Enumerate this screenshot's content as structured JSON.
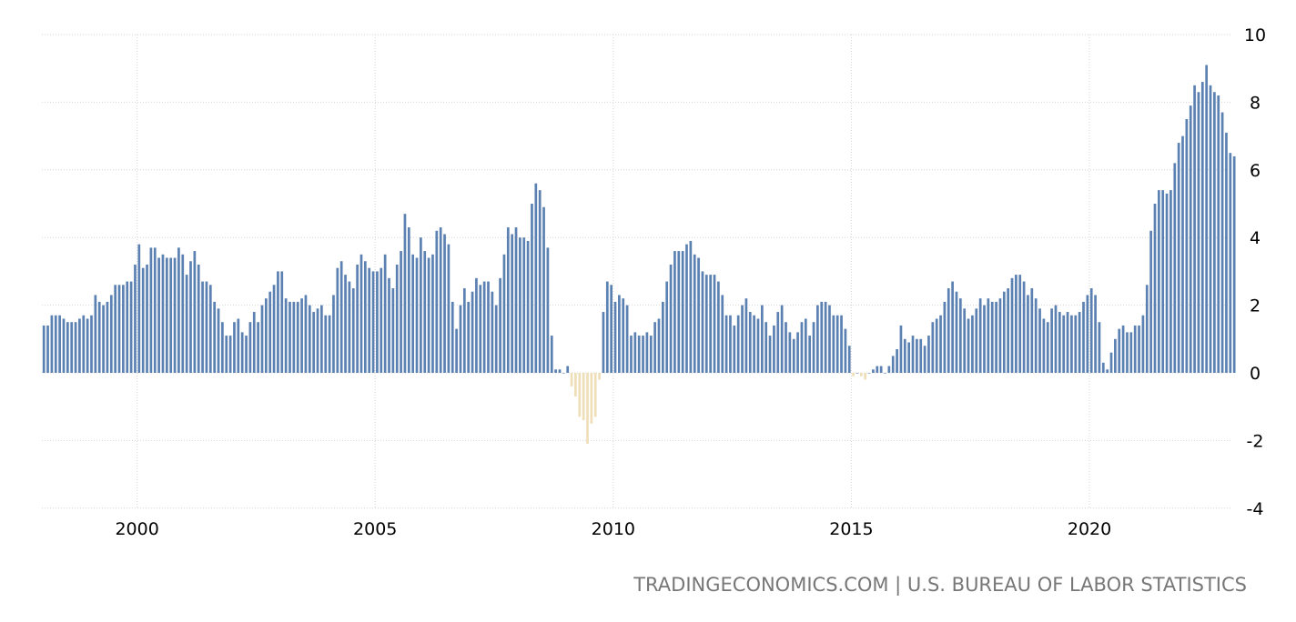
{
  "source": "TRADINGECONOMICS.COM | U.S. BUREAU OF LABOR STATISTICS",
  "colors": {
    "positive": "#5b80b2",
    "negative": "#efdfb8",
    "grid": "#d6d6d6",
    "text": "#000000",
    "source_text": "#777777"
  },
  "chart_data": {
    "type": "bar",
    "title": "",
    "xlabel": "",
    "ylabel": "",
    "ylim": [
      -4,
      10
    ],
    "xlim": [
      "1998-01",
      "2023-01"
    ],
    "yticks": [
      "10",
      "8",
      "6",
      "4",
      "2",
      "0",
      "-2",
      "-4"
    ],
    "xticks": [
      "2000",
      "2005",
      "2010",
      "2015",
      "2020"
    ],
    "grid": true,
    "frequency": "monthly",
    "start": "1998-01",
    "values": [
      1.4,
      1.4,
      1.7,
      1.7,
      1.7,
      1.6,
      1.5,
      1.5,
      1.5,
      1.6,
      1.7,
      1.6,
      1.7,
      2.3,
      2.1,
      2.0,
      2.1,
      2.3,
      2.6,
      2.6,
      2.6,
      2.7,
      2.7,
      3.2,
      3.8,
      3.1,
      3.2,
      3.7,
      3.7,
      3.4,
      3.5,
      3.4,
      3.4,
      3.4,
      3.7,
      3.5,
      2.9,
      3.3,
      3.6,
      3.2,
      2.7,
      2.7,
      2.6,
      2.1,
      1.9,
      1.5,
      1.1,
      1.1,
      1.5,
      1.6,
      1.2,
      1.1,
      1.5,
      1.8,
      1.5,
      2.0,
      2.2,
      2.4,
      2.6,
      3.0,
      3.0,
      2.2,
      2.1,
      2.1,
      2.1,
      2.2,
      2.3,
      2.0,
      1.8,
      1.9,
      2.0,
      1.7,
      1.7,
      2.3,
      3.1,
      3.3,
      2.9,
      2.7,
      2.5,
      3.2,
      3.5,
      3.3,
      3.1,
      3.0,
      3.0,
      3.1,
      3.5,
      2.8,
      2.5,
      3.2,
      3.6,
      4.7,
      4.3,
      3.5,
      3.4,
      4.0,
      3.6,
      3.4,
      3.5,
      4.2,
      4.3,
      4.1,
      3.8,
      2.1,
      1.3,
      2.0,
      2.5,
      2.1,
      2.4,
      2.8,
      2.6,
      2.7,
      2.7,
      2.4,
      2.0,
      2.8,
      3.5,
      4.3,
      4.1,
      4.3,
      4.0,
      4.0,
      3.9,
      5.0,
      5.6,
      5.4,
      4.9,
      3.7,
      1.1,
      0.1,
      0.1,
      0.0,
      0.2,
      -0.4,
      -0.7,
      -1.3,
      -1.4,
      -2.1,
      -1.5,
      -1.3,
      -0.2,
      1.8,
      2.7,
      2.6,
      2.1,
      2.3,
      2.2,
      2.0,
      1.1,
      1.2,
      1.1,
      1.1,
      1.2,
      1.1,
      1.5,
      1.6,
      2.1,
      2.7,
      3.2,
      3.6,
      3.6,
      3.6,
      3.8,
      3.9,
      3.5,
      3.4,
      3.0,
      2.9,
      2.9,
      2.9,
      2.7,
      2.3,
      1.7,
      1.7,
      1.4,
      1.7,
      2.0,
      2.2,
      1.8,
      1.7,
      1.6,
      2.0,
      1.5,
      1.1,
      1.4,
      1.8,
      2.0,
      1.5,
      1.2,
      1.0,
      1.2,
      1.5,
      1.6,
      1.1,
      1.5,
      2.0,
      2.1,
      2.1,
      2.0,
      1.7,
      1.7,
      1.7,
      1.3,
      0.8,
      -0.1,
      0.0,
      -0.1,
      -0.2,
      0.0,
      0.1,
      0.2,
      0.2,
      0.0,
      0.2,
      0.5,
      0.7,
      1.4,
      1.0,
      0.9,
      1.1,
      1.0,
      1.0,
      0.8,
      1.1,
      1.5,
      1.6,
      1.7,
      2.1,
      2.5,
      2.7,
      2.4,
      2.2,
      1.9,
      1.6,
      1.7,
      1.9,
      2.2,
      2.0,
      2.2,
      2.1,
      2.1,
      2.2,
      2.4,
      2.5,
      2.8,
      2.9,
      2.9,
      2.7,
      2.3,
      2.5,
      2.2,
      1.9,
      1.6,
      1.5,
      1.9,
      2.0,
      1.8,
      1.7,
      1.8,
      1.7,
      1.7,
      1.8,
      2.1,
      2.3,
      2.5,
      2.3,
      1.5,
      0.3,
      0.1,
      0.6,
      1.0,
      1.3,
      1.4,
      1.2,
      1.2,
      1.4,
      1.4,
      1.7,
      2.6,
      4.2,
      5.0,
      5.4,
      5.4,
      5.3,
      5.4,
      6.2,
      6.8,
      7.0,
      7.5,
      7.9,
      8.5,
      8.3,
      8.6,
      9.1,
      8.5,
      8.3,
      8.2,
      7.7,
      7.1,
      6.5,
      6.4
    ]
  }
}
